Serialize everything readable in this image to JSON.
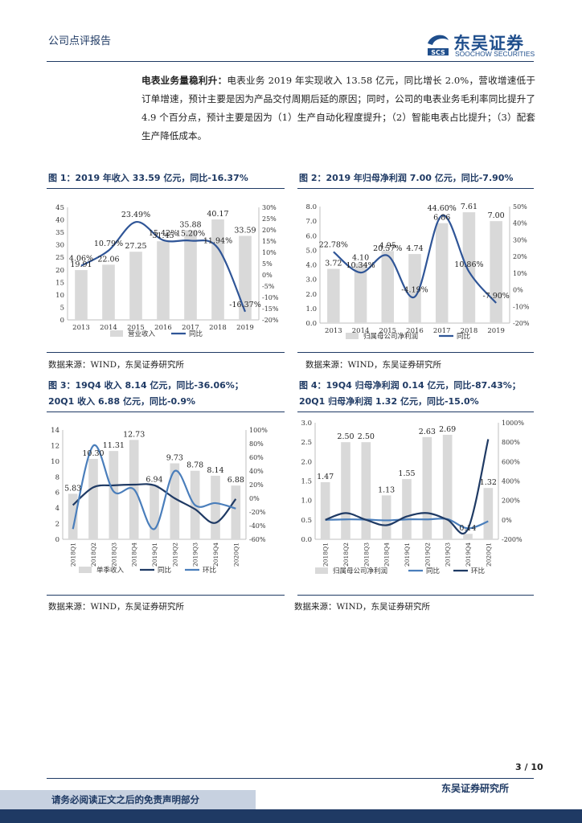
{
  "header": {
    "title": "公司点评报告"
  },
  "logo": {
    "name": "东吴证券",
    "sub": "SOOCHOW SECURITIES",
    "mark": "SCS"
  },
  "paragraph": {
    "lead": "电表业务量稳利升：",
    "text": "电表业务 2019 年实现收入 13.58 亿元，同比增长 2.0%，营收增速低于订单增速，预计主要是因为产品交付周期后延的原因；同时，公司的电表业务毛利率同比提升了 4.9 个百分点，预计主要是因为（1）生产自动化程度提升；（2）智能电表占比提升；（3）配套生产降低成本。"
  },
  "figures": [
    {
      "title": "图 1：2019 年收入 33.59 亿元，同比-16.37%",
      "source": "数据来源：WIND，东吴证券研究所"
    },
    {
      "title": "图 2：2019 年归母净利润 7.00 亿元，同比-7.90%",
      "source": "数据来源：WIND，东吴证券研究所"
    },
    {
      "title": "图 3：19Q4 收入 8.14 亿元，同比-36.06%；",
      "title2": "20Q1 收入 6.88 亿元，同比-0.9%",
      "source": "数据来源：WIND，东吴证券研究所"
    },
    {
      "title": "图 4：19Q4 归母净利润 0.14 亿元，同比-87.43%；",
      "title2": "20Q1 归母净利润 1.32 亿元，同比-15.0%",
      "source": "数据来源：WIND，东吴证券研究所"
    }
  ],
  "chart_data": [
    {
      "type": "bar",
      "categories": [
        "2013",
        "2014",
        "2015",
        "2016",
        "2017",
        "2018",
        "2019"
      ],
      "series": [
        {
          "name": "营业收入",
          "kind": "bar",
          "axis": "left",
          "values": [
            19.91,
            22.06,
            27.25,
            31.45,
            35.88,
            40.17,
            33.59
          ],
          "labels": [
            "19.91",
            "22.06",
            "27.25",
            "31.45",
            "35.88",
            "40.17",
            "33.59"
          ]
        },
        {
          "name": "同比",
          "kind": "line",
          "axis": "right",
          "values": [
            4.06,
            10.79,
            23.49,
            15.42,
            15.2,
            11.94,
            -16.37
          ],
          "labels": [
            "4.06%",
            "10.79%",
            "23.49%",
            "15.42%",
            "15.20%",
            "11.94%",
            "-16.37%"
          ]
        }
      ],
      "ylim": [
        0,
        45
      ],
      "yticks": [
        "0",
        "5",
        "10",
        "15",
        "20",
        "25",
        "30",
        "35",
        "40",
        "45"
      ],
      "y2lim": [
        -20,
        30
      ],
      "y2ticks": [
        "-20%",
        "-15%",
        "-10%",
        "-5%",
        "0%",
        "5%",
        "10%",
        "15%",
        "20%",
        "25%",
        "30%"
      ],
      "legend": [
        "营业收入",
        "同比"
      ],
      "colors": {
        "bar": "#d9d9d9",
        "line": "#2f5597"
      }
    },
    {
      "type": "bar",
      "categories": [
        "2013",
        "2014",
        "2015",
        "2016",
        "2017",
        "2018",
        "2019"
      ],
      "series": [
        {
          "name": "归属母公司净利润",
          "kind": "bar",
          "axis": "left",
          "values": [
            3.72,
            4.1,
            4.95,
            4.74,
            6.86,
            7.61,
            7.0
          ],
          "labels": [
            "3.72",
            "4.10",
            "4.95",
            "4.74",
            "6.86",
            "7.61",
            "7.00"
          ]
        },
        {
          "name": "同比",
          "kind": "line",
          "axis": "right",
          "values": [
            22.78,
            10.34,
            20.57,
            -4.19,
            44.6,
            10.86,
            -7.9
          ],
          "labels": [
            "22.78%",
            "10.34%",
            "20.57%",
            "-4.19%",
            "44.60%",
            "10.86%",
            "-7.90%"
          ]
        }
      ],
      "ylim": [
        0,
        8
      ],
      "yticks": [
        "0.0",
        "1.0",
        "2.0",
        "3.0",
        "4.0",
        "5.0",
        "6.0",
        "7.0",
        "8.0"
      ],
      "y2lim": [
        -20,
        50
      ],
      "y2ticks": [
        "-20%",
        "-10%",
        "0%",
        "10%",
        "20%",
        "30%",
        "40%",
        "50%"
      ],
      "legend": [
        "归属母公司净利润",
        "同比"
      ],
      "colors": {
        "bar": "#d9d9d9",
        "line": "#2f5597"
      }
    },
    {
      "type": "bar",
      "categories": [
        "2018Q1",
        "2018Q2",
        "2018Q3",
        "2018Q4",
        "2019Q1",
        "2019Q2",
        "2019Q3",
        "2019Q4",
        "2020Q1"
      ],
      "series": [
        {
          "name": "单季收入",
          "kind": "bar",
          "axis": "left",
          "values": [
            5.83,
            10.3,
            11.31,
            12.73,
            6.94,
            9.73,
            8.78,
            8.14,
            6.88
          ],
          "labels": [
            "5.83",
            "10.30",
            "11.31",
            "12.73",
            "6.94",
            "9.73",
            "8.78",
            "8.14",
            "6.88"
          ]
        },
        {
          "name": "同比",
          "kind": "line",
          "axis": "right",
          "values": [
            -10,
            16,
            19,
            20,
            19,
            0,
            -16,
            -36,
            -1
          ],
          "color": "#1f3a64"
        },
        {
          "name": "环比",
          "kind": "line",
          "axis": "right",
          "values": [
            -45,
            77,
            10,
            13,
            -45,
            40,
            -10,
            -7,
            -15
          ],
          "color": "#4a7ebb"
        }
      ],
      "ylim": [
        0,
        14
      ],
      "yticks": [
        "0",
        "2",
        "4",
        "6",
        "8",
        "10",
        "12",
        "14"
      ],
      "y2lim": [
        -60,
        100
      ],
      "y2ticks": [
        "-60%",
        "-40%",
        "-20%",
        "0%",
        "20%",
        "40%",
        "60%",
        "80%",
        "100%"
      ],
      "legend": [
        "单季收入",
        "同比",
        "环比"
      ],
      "colors": {
        "bar": "#d9d9d9"
      }
    },
    {
      "type": "bar",
      "categories": [
        "2018Q1",
        "2018Q2",
        "2018Q3",
        "2018Q4",
        "2019Q1",
        "2019Q2",
        "2019Q3",
        "2019Q4",
        "2020Q1"
      ],
      "series": [
        {
          "name": "归属母公司净利润",
          "kind": "bar",
          "axis": "left",
          "values": [
            1.47,
            2.5,
            2.5,
            1.13,
            1.55,
            2.63,
            2.69,
            0.14,
            1.32
          ],
          "labels": [
            "1.47",
            "2.50",
            "2.50",
            "1.13",
            "1.55",
            "2.63",
            "2.69",
            "0.14",
            "1.32"
          ]
        },
        {
          "name": "同比",
          "kind": "line",
          "axis": "right",
          "values": [
            0,
            5,
            3,
            -5,
            5,
            5,
            7,
            -87,
            -15
          ],
          "color": "#4a7ebb"
        },
        {
          "name": "环比",
          "kind": "line",
          "axis": "right",
          "values": [
            0,
            70,
            0,
            -55,
            35,
            70,
            2,
            -95,
            830
          ],
          "color": "#1f3a64"
        }
      ],
      "ylim": [
        0,
        3
      ],
      "yticks": [
        "0.0",
        "0.5",
        "1.0",
        "1.5",
        "2.0",
        "2.5",
        "3.0"
      ],
      "y2lim": [
        -200,
        1000
      ],
      "y2ticks": [
        "-200%",
        "0%",
        "200%",
        "400%",
        "600%",
        "800%",
        "1000%"
      ],
      "legend": [
        "归属母公司净利润",
        "同比",
        "环比"
      ],
      "colors": {
        "bar": "#d9d9d9"
      }
    }
  ],
  "footer": {
    "page": "3 / 10",
    "brand": "东吴证券研究所",
    "disclaimer": "请务必阅读正文之后的免责声明部分"
  }
}
